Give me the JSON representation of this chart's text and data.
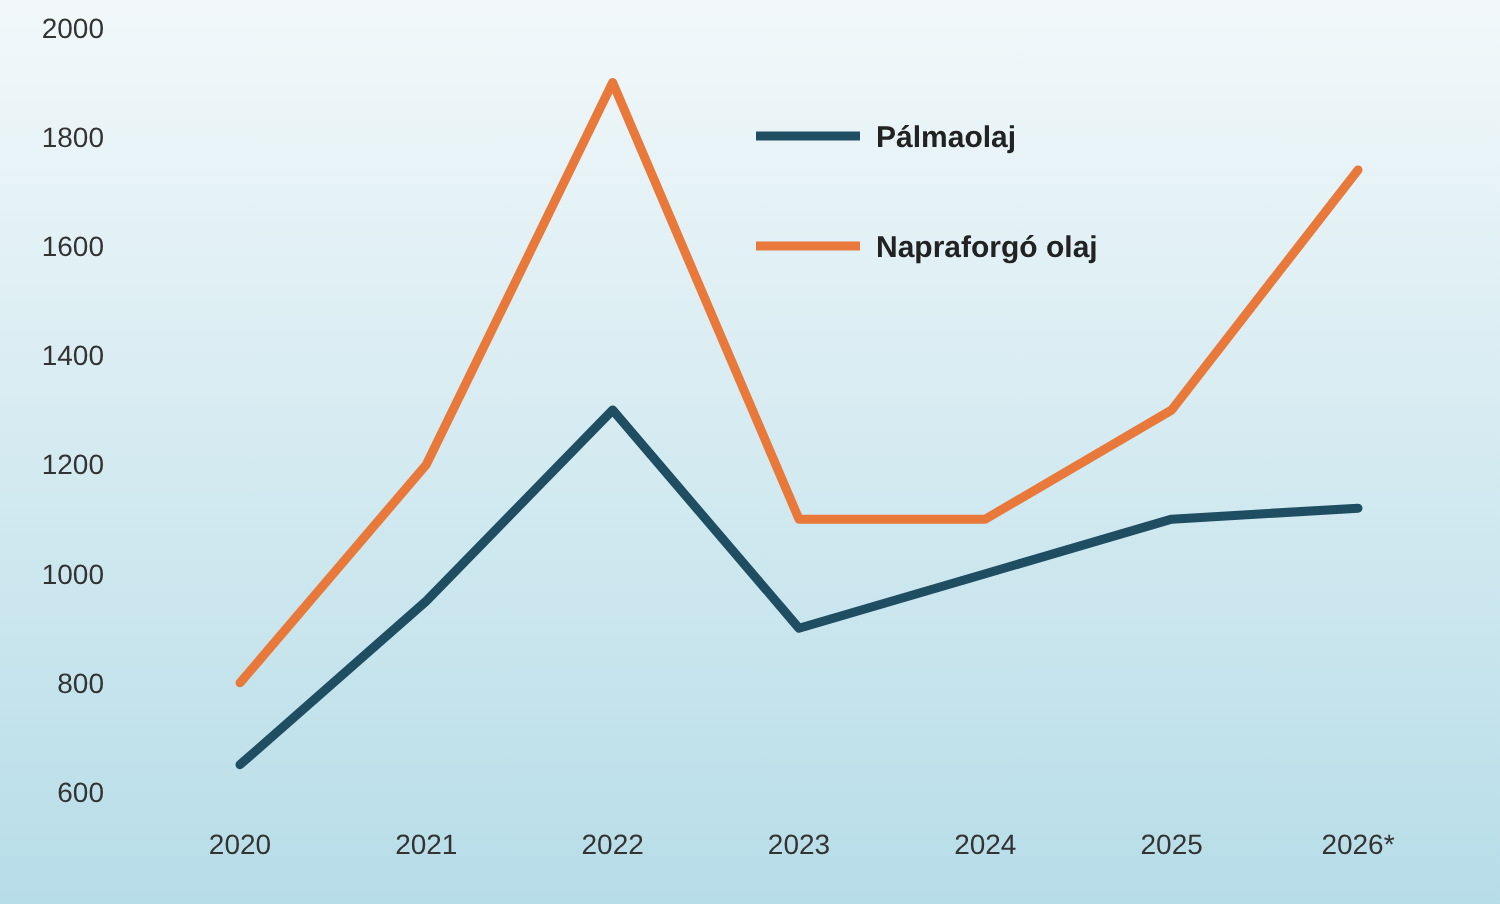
{
  "chart_data": {
    "type": "line",
    "categories": [
      "2020",
      "2021",
      "2022",
      "2023",
      "2024",
      "2025",
      "2026*"
    ],
    "series": [
      {
        "name": "Pálmaolaj",
        "color": "#1f4e63",
        "values": [
          650,
          950,
          1300,
          900,
          1000,
          1100,
          1120
        ]
      },
      {
        "name": "Napraforgó olaj",
        "color": "#e8793a",
        "values": [
          800,
          1200,
          1900,
          1100,
          1100,
          1300,
          1740
        ]
      }
    ],
    "ylim": [
      600,
      2000
    ],
    "yticks": [
      600,
      800,
      1000,
      1200,
      1400,
      1600,
      1800,
      2000
    ],
    "grid": false,
    "legend": "top",
    "marker": "none",
    "line_style": "solid"
  }
}
